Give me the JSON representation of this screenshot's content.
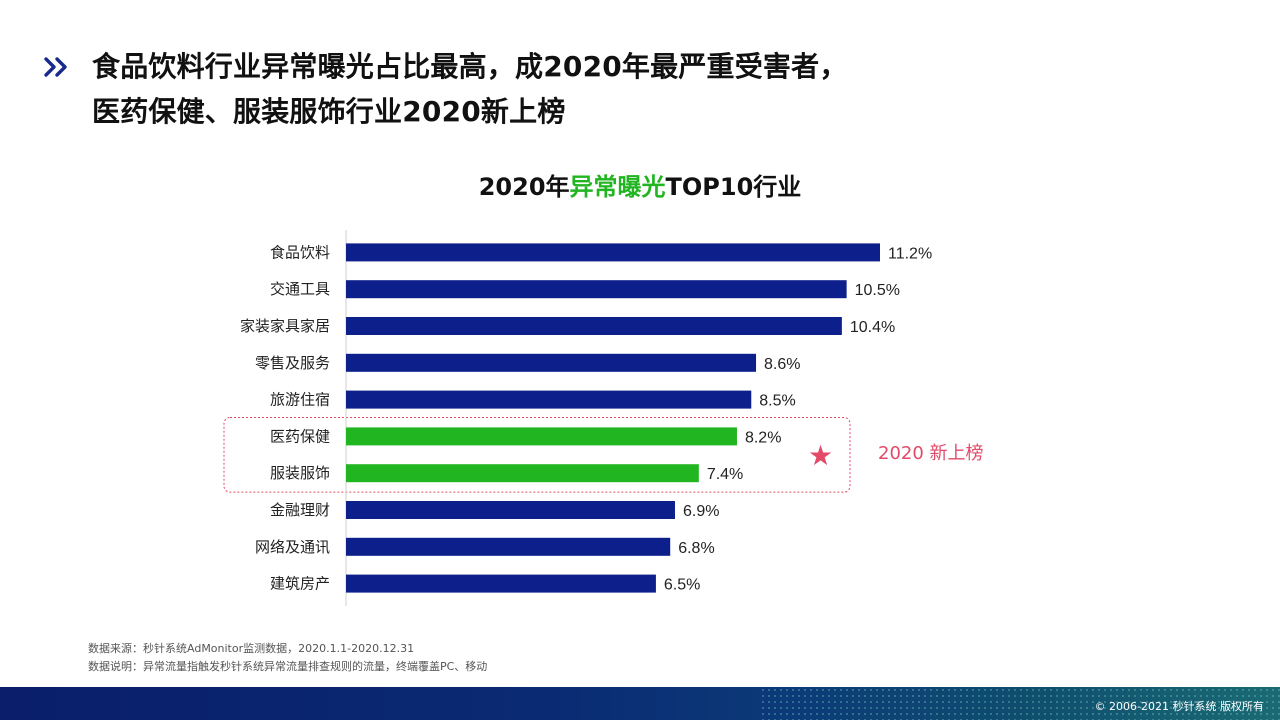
{
  "headline": {
    "line1": "食品饮料行业异常曝光占比最高，成2020年最严重受害者，",
    "line2": "医药保健、服装服饰行业2020新上榜"
  },
  "chart_data": {
    "type": "bar",
    "orientation": "horizontal",
    "title_prefix": "2020年",
    "title_accent": "异常曝光",
    "title_suffix": "TOP10行业",
    "categories": [
      "食品饮料",
      "交通工具",
      "家装家具家居",
      "零售及服务",
      "旅游住宿",
      "医药保健",
      "服装服饰",
      "金融理财",
      "网络及通讯",
      "建筑房产"
    ],
    "values": [
      11.2,
      10.5,
      10.4,
      8.6,
      8.5,
      8.2,
      7.4,
      6.9,
      6.8,
      6.5
    ],
    "labels": [
      "11.2%",
      "10.5%",
      "10.4%",
      "8.6%",
      "8.5%",
      "8.2%",
      "7.4%",
      "6.9%",
      "6.8%",
      "6.5%"
    ],
    "highlight": [
      false,
      false,
      false,
      false,
      false,
      true,
      true,
      false,
      false,
      false
    ],
    "unit": "%",
    "xlim": [
      0,
      11.2
    ],
    "colors": {
      "default": "#0d1f8a",
      "highlight": "#22b522",
      "accent": "#e24a68"
    },
    "annotation": {
      "icon": "star-icon",
      "text": "2020 新上榜"
    }
  },
  "footnotes": {
    "source": "数据来源：秒针系统AdMonitor监测数据，2020.1.1-2020.12.31",
    "note": "数据说明：异常流量指触发秒针系统异常流量排查规则的流量，终端覆盖PC、移动"
  },
  "footer": {
    "copyright": "© 2006-2021  秒针系统 版权所有"
  }
}
